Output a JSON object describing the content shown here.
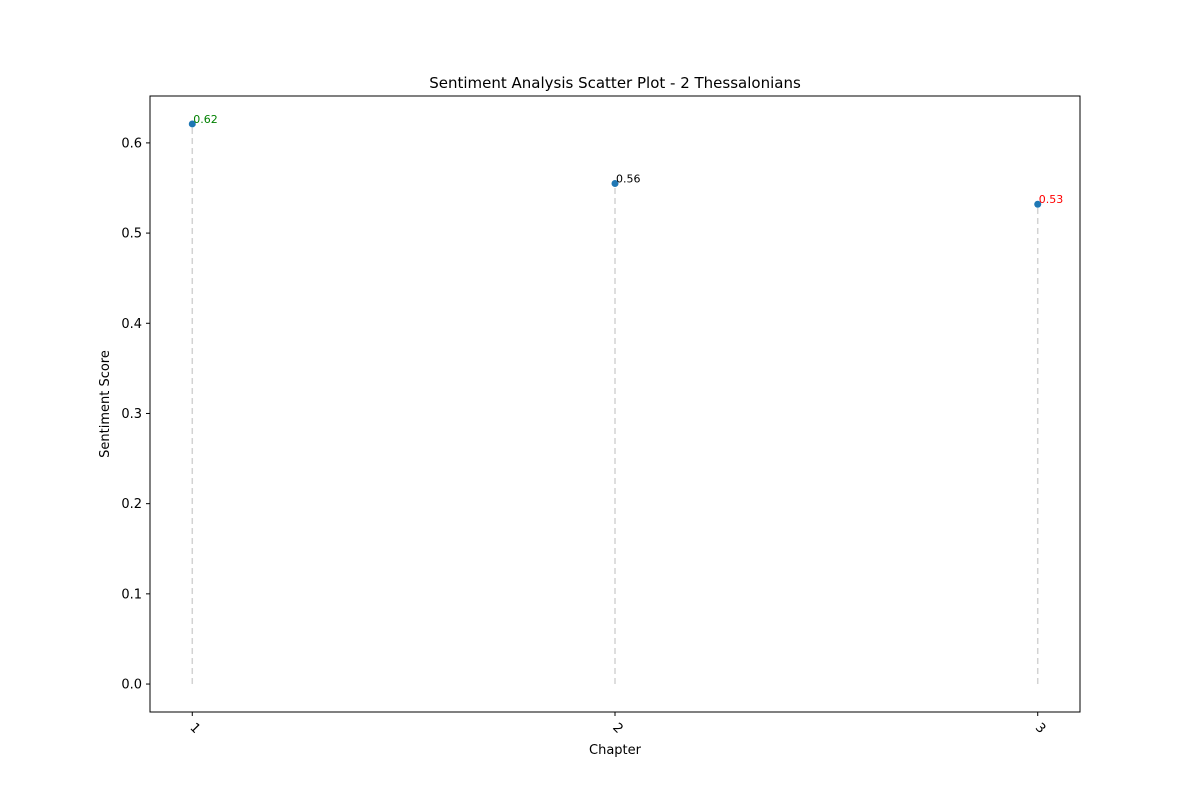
{
  "chart_data": {
    "type": "scatter",
    "title": "Sentiment Analysis Scatter Plot - 2 Thessalonians",
    "xlabel": "Chapter",
    "ylabel": "Sentiment Score",
    "x_ticks": [
      "1",
      "2",
      "3"
    ],
    "y_ticks": [
      "0.0",
      "0.1",
      "0.2",
      "0.3",
      "0.4",
      "0.5",
      "0.6"
    ],
    "xlim": [
      0.9,
      3.1
    ],
    "ylim": [
      -0.031,
      0.652
    ],
    "grid": false,
    "legend": "none",
    "marker_color": "#1f77b4",
    "stem_color": "#d3d3d3",
    "points": [
      {
        "x": 1,
        "y": 0.621,
        "label": "0.62",
        "label_color": "#008000"
      },
      {
        "x": 2,
        "y": 0.555,
        "label": "0.56",
        "label_color": "#000000"
      },
      {
        "x": 3,
        "y": 0.532,
        "label": "0.53",
        "label_color": "#ff0000"
      }
    ]
  }
}
